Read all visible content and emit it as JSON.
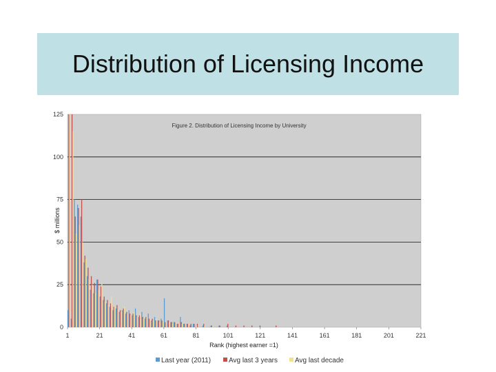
{
  "slide": {
    "title": "Distribution of Licensing Income"
  },
  "colors": {
    "banner": "#bfe0e4",
    "plot_background": "#cfcfcf",
    "last_year": "#5b9bd5",
    "avg_3_years": "#c0504d",
    "avg_decade": "#f2e28c"
  },
  "chart_data": {
    "type": "bar",
    "title": "Figure 2. Distribution of Licensing Income by University",
    "xlabel": "Rank (highest earner =1)",
    "ylabel": "$ millions",
    "ylim": [
      0,
      125
    ],
    "yticks": [
      0,
      25,
      50,
      75,
      100,
      125
    ],
    "xlim": [
      1,
      221
    ],
    "xticks": [
      1,
      21,
      41,
      61,
      81,
      101,
      121,
      141,
      161,
      181,
      201,
      221
    ],
    "grid": "horizontal",
    "legend_position": "bottom",
    "series": [
      {
        "name": "Last year (2011)",
        "ranks": [
          1,
          3,
          5,
          7,
          9,
          11,
          13,
          15,
          17,
          19,
          21,
          23,
          25,
          27,
          29,
          31,
          33,
          35,
          37,
          39,
          41,
          43,
          45,
          47,
          49,
          51,
          53,
          55,
          57,
          59,
          61,
          63,
          65,
          67,
          69,
          71,
          73,
          75,
          77,
          79,
          81,
          85,
          90,
          95,
          100
        ],
        "values": [
          10,
          5,
          75,
          72,
          65,
          38,
          30,
          22,
          20,
          28,
          18,
          16,
          14,
          12,
          10,
          11,
          9,
          10,
          8,
          10,
          7,
          11,
          6,
          9,
          5,
          8,
          4,
          6,
          4,
          5,
          17,
          4,
          3,
          3,
          2,
          6,
          2,
          2,
          1,
          2,
          1,
          1,
          1,
          1,
          1
        ]
      },
      {
        "name": "Avg last 3 years",
        "ranks": [
          1,
          3,
          5,
          7,
          9,
          11,
          13,
          15,
          17,
          19,
          21,
          23,
          25,
          27,
          29,
          31,
          33,
          35,
          37,
          39,
          41,
          43,
          45,
          47,
          49,
          51,
          53,
          55,
          57,
          59,
          61,
          63,
          65,
          67,
          69,
          71,
          73,
          75,
          77,
          79,
          81,
          85,
          90,
          95,
          100,
          105,
          110,
          115,
          120,
          130
        ],
        "values": [
          125,
          125,
          65,
          70,
          75,
          42,
          35,
          30,
          26,
          28,
          24,
          18,
          16,
          14,
          12,
          13,
          10,
          11,
          9,
          8,
          8,
          7,
          7,
          6,
          6,
          5,
          5,
          4,
          4,
          4,
          3,
          4,
          3,
          3,
          2,
          3,
          2,
          2,
          2,
          2,
          2,
          2,
          1,
          1,
          2,
          1,
          1,
          1,
          1,
          1
        ]
      },
      {
        "name": "Avg last decade",
        "ranks": [
          1,
          3,
          5,
          7,
          9,
          11,
          13,
          15,
          17,
          19,
          21,
          23,
          25,
          27,
          29,
          31,
          33,
          35,
          37,
          39,
          41,
          43,
          45,
          47,
          49,
          51,
          53,
          55,
          57,
          59,
          61,
          63,
          65,
          67,
          69,
          71,
          73,
          75,
          80,
          85,
          90
        ],
        "values": [
          125,
          115,
          55,
          60,
          50,
          40,
          28,
          25,
          20,
          22,
          26,
          15,
          13,
          18,
          12,
          10,
          9,
          12,
          8,
          7,
          9,
          6,
          8,
          5,
          6,
          5,
          4,
          5,
          3,
          4,
          3,
          3,
          2,
          3,
          2,
          2,
          2,
          2,
          1,
          1,
          1
        ]
      }
    ]
  }
}
